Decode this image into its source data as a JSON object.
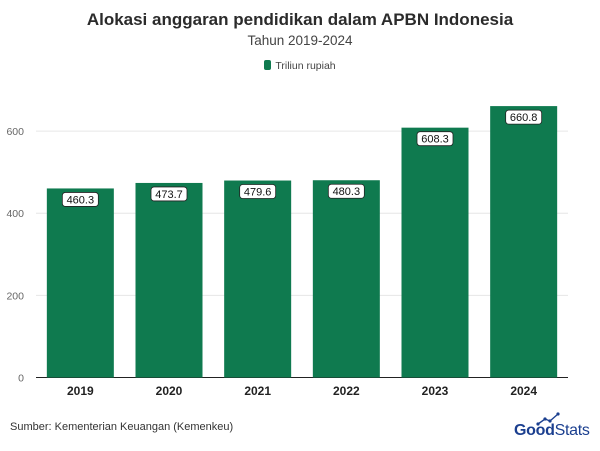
{
  "chart_data": {
    "type": "bar",
    "title": "Alokasi anggaran pendidikan dalam APBN Indonesia",
    "subtitle": "Tahun 2019-2024",
    "categories": [
      "2019",
      "2020",
      "2021",
      "2022",
      "2023",
      "2024"
    ],
    "series": [
      {
        "name": "Triliun rupiah",
        "values": [
          460.3,
          473.7,
          479.6,
          480.3,
          608.3,
          660.8
        ]
      }
    ],
    "value_labels": [
      "460.3",
      "473.7",
      "479.6",
      "480.3",
      "608.3",
      "660.8"
    ],
    "yticks": [
      0,
      200,
      400,
      600
    ],
    "ytick_labels": [
      "0",
      "200",
      "400",
      "600"
    ],
    "ylim": [
      0,
      700
    ],
    "grid": true,
    "legend_position": "top-center",
    "bar_color": "#0f7a4f"
  },
  "source": "Sumber: Kementerian Keuangan (Kemenkeu)",
  "logo": {
    "part1": "Good",
    "part2": "Stats",
    "color": "#1b3f8f"
  }
}
